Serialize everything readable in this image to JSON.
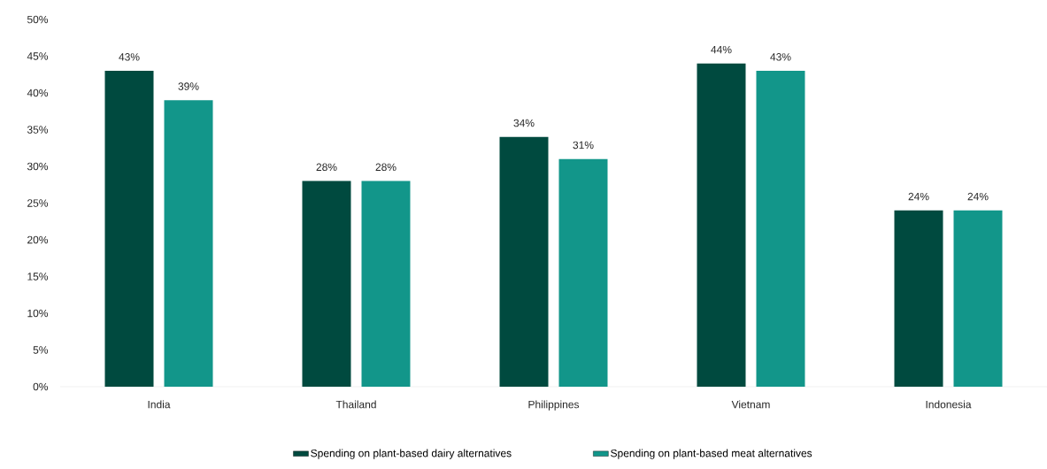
{
  "chart_data": {
    "type": "bar",
    "categories": [
      "India",
      "Thailand",
      "Philippines",
      "Vietnam",
      "Indonesia"
    ],
    "series": [
      {
        "name": "Spending on plant-based dairy alternatives",
        "color": "#004a3f",
        "values": [
          43,
          28,
          34,
          44,
          24
        ],
        "value_labels": [
          "43%",
          "28%",
          "34%",
          "44%",
          "24%"
        ]
      },
      {
        "name": "Spending on plant-based meat alternatives",
        "color": "#12968a",
        "values": [
          39,
          28,
          31,
          43,
          24
        ],
        "value_labels": [
          "39%",
          "28%",
          "31%",
          "43%",
          "24%"
        ]
      }
    ],
    "ylim": [
      0,
      50
    ],
    "yticks": [
      {
        "value": 0,
        "label": "0%"
      },
      {
        "value": 5,
        "label": "5%"
      },
      {
        "value": 10,
        "label": "10%"
      },
      {
        "value": 15,
        "label": "15%"
      },
      {
        "value": 20,
        "label": "20%"
      },
      {
        "value": 25,
        "label": "25%"
      },
      {
        "value": 30,
        "label": "30%"
      },
      {
        "value": 35,
        "label": "35%"
      },
      {
        "value": 40,
        "label": "40%"
      },
      {
        "value": 45,
        "label": "45%"
      },
      {
        "value": 50,
        "label": "50%"
      }
    ],
    "legend": "bottom"
  }
}
